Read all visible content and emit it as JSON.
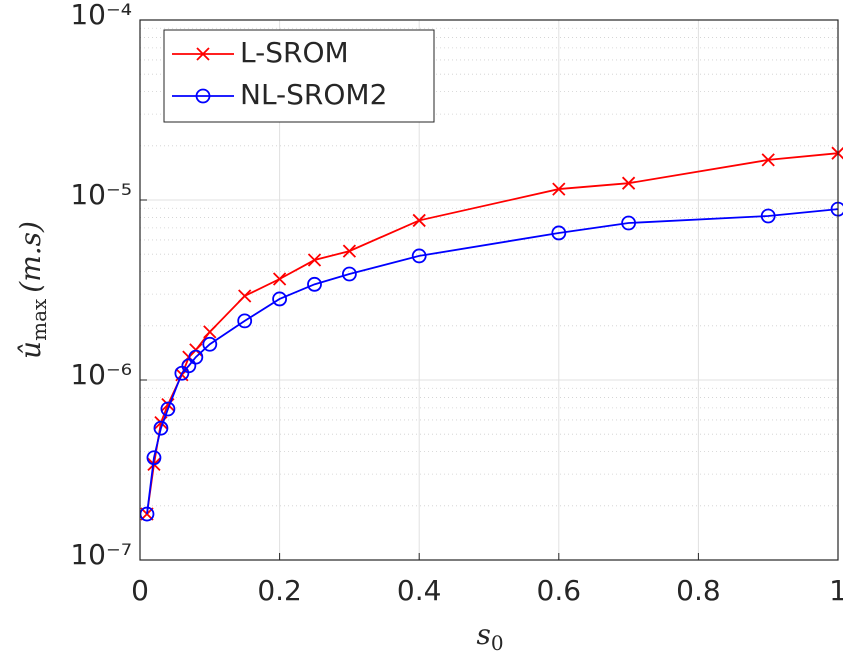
{
  "chart_data": {
    "type": "line",
    "xlabel": {
      "symbol": "s",
      "subscript": "0"
    },
    "ylabel": {
      "symbol": "û",
      "subscript": "max",
      "unit": "(m.s)"
    },
    "x": [
      0.01,
      0.02,
      0.03,
      0.04,
      0.06,
      0.07,
      0.08,
      0.1,
      0.15,
      0.2,
      0.25,
      0.3,
      0.4,
      0.6,
      0.7,
      0.9,
      1.0
    ],
    "series": [
      {
        "name": "L-SROM",
        "color": "#ff0000",
        "marker": "x",
        "values": [
          1.8e-07,
          3.4e-07,
          5.8e-07,
          7.3e-07,
          1.07e-06,
          1.34e-06,
          1.47e-06,
          1.85e-06,
          2.93e-06,
          3.64e-06,
          4.64e-06,
          5.2e-06,
          7.7e-06,
          1.15e-05,
          1.24e-05,
          1.67e-05,
          1.82e-05
        ]
      },
      {
        "name": "NL-SROM2",
        "color": "#0000ff",
        "marker": "o",
        "values": [
          1.8e-07,
          3.7e-07,
          5.4e-07,
          6.9e-07,
          1.09e-06,
          1.2e-06,
          1.34e-06,
          1.58e-06,
          2.13e-06,
          2.82e-06,
          3.4e-06,
          3.88e-06,
          4.89e-06,
          6.56e-06,
          7.45e-06,
          8.15e-06,
          8.9e-06
        ]
      }
    ],
    "xlim": [
      0,
      1
    ],
    "xticks": [
      0,
      0.2,
      0.4,
      0.6,
      0.8,
      1
    ],
    "ylim": [
      1e-07,
      0.0001
    ],
    "yticks": [
      {
        "value": 1e-07,
        "label": "10⁻⁷"
      },
      {
        "value": 1e-06,
        "label": "10⁻⁶"
      },
      {
        "value": 1e-05,
        "label": "10⁻⁵"
      },
      {
        "value": 0.0001,
        "label": "10⁻⁴"
      }
    ],
    "ylog": true,
    "grid": true,
    "minor_grid": true,
    "legend": "upper left"
  }
}
